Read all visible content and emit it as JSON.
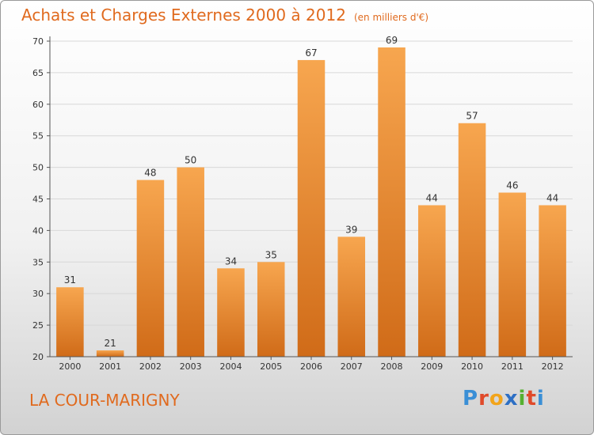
{
  "title": {
    "main": "Achats et Charges Externes 2000 à 2012",
    "unit": "(en milliers d'€)"
  },
  "commune": "LA COUR-MARIGNY",
  "brand": {
    "letters": [
      "P",
      "r",
      "o",
      "x",
      "i",
      "t",
      "i"
    ],
    "colors": [
      "#3a8fd6",
      "#e04a2a",
      "#f2a41a",
      "#2d6fc4",
      "#55b030",
      "#e04a2a",
      "#3a8fd6"
    ]
  },
  "colors": {
    "bar_top": "#f7a64f",
    "bar_bottom": "#d06b18",
    "title": "#e06a1e",
    "axis": "#555555",
    "grid": "#d8d8d8"
  },
  "chart_data": {
    "type": "bar",
    "categories": [
      "2000",
      "2001",
      "2002",
      "2003",
      "2004",
      "2005",
      "2006",
      "2007",
      "2008",
      "2009",
      "2010",
      "2011",
      "2012"
    ],
    "values": [
      31,
      21,
      48,
      50,
      34,
      35,
      67,
      39,
      69,
      44,
      57,
      46,
      44
    ],
    "value_labels": [
      "31",
      "21",
      "48",
      "50",
      "34",
      "35",
      "67",
      "39",
      "69",
      "44",
      "57",
      "46",
      "44"
    ],
    "yticks": [
      "20",
      "25",
      "30",
      "35",
      "40",
      "45",
      "50",
      "55",
      "60",
      "65",
      "70"
    ],
    "ylim": [
      20,
      70
    ],
    "title": "Achats et Charges Externes 2000 à 2012",
    "xlabel": "",
    "ylabel": "",
    "grid": true,
    "legend": "none"
  }
}
